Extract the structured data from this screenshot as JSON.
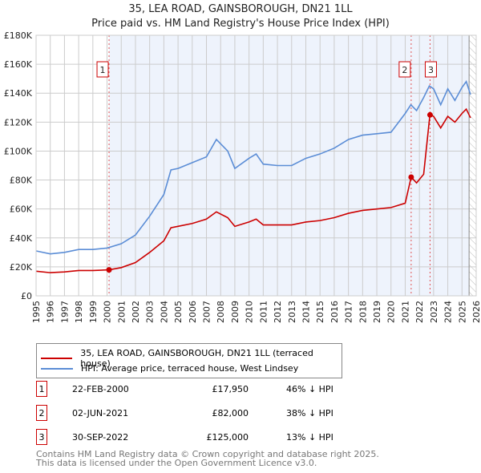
{
  "chart_data": {
    "type": "line",
    "title": "35, LEA ROAD, GAINSBOROUGH, DN21 1LL",
    "subtitle": "Price paid vs. HM Land Registry's House Price Index (HPI)",
    "xlim": [
      1995,
      2026
    ],
    "ylim": [
      0,
      180000
    ],
    "yticks": [
      {
        "v": 0,
        "l": "£0"
      },
      {
        "v": 20000,
        "l": "£20K"
      },
      {
        "v": 40000,
        "l": "£40K"
      },
      {
        "v": 60000,
        "l": "£60K"
      },
      {
        "v": 80000,
        "l": "£80K"
      },
      {
        "v": 100000,
        "l": "£100K"
      },
      {
        "v": 120000,
        "l": "£120K"
      },
      {
        "v": 140000,
        "l": "£140K"
      },
      {
        "v": 160000,
        "l": "£160K"
      },
      {
        "v": 180000,
        "l": "£180K"
      }
    ],
    "xticks": [
      "1995",
      "1996",
      "1997",
      "1998",
      "1999",
      "2000",
      "2001",
      "2002",
      "2003",
      "2004",
      "2005",
      "2006",
      "2007",
      "2008",
      "2009",
      "2010",
      "2011",
      "2012",
      "2013",
      "2014",
      "2015",
      "2016",
      "2017",
      "2018",
      "2019",
      "2020",
      "2021",
      "2022",
      "2023",
      "2024",
      "2025",
      "2026"
    ],
    "series": [
      {
        "name": "35, LEA ROAD, GAINSBOROUGH, DN21 1LL (terraced house)",
        "color": "#cc0000",
        "x": [
          1995,
          1996,
          1997,
          1998,
          1999,
          2000.14,
          2001,
          2002,
          2003,
          2004,
          2004.5,
          2005,
          2006,
          2007,
          2007.7,
          2008.5,
          2009,
          2010,
          2010.5,
          2011,
          2012,
          2013,
          2014,
          2015,
          2016,
          2017,
          2018,
          2019,
          2020,
          2021,
          2021.42,
          2021.8,
          2022.3,
          2022.74,
          2023,
          2023.5,
          2024,
          2024.5,
          2025,
          2025.3,
          2025.6
        ],
        "y": [
          17000,
          16000,
          16500,
          17500,
          17500,
          17950,
          19500,
          23000,
          30000,
          38000,
          47000,
          48000,
          50000,
          53000,
          58000,
          54000,
          48000,
          51000,
          53000,
          49000,
          49000,
          49000,
          51000,
          52000,
          54000,
          57000,
          59000,
          60000,
          61000,
          64000,
          82000,
          78000,
          84000,
          125000,
          124000,
          116000,
          124000,
          120000,
          126000,
          129000,
          123000
        ]
      },
      {
        "name": "HPI: Average price, terraced house, West Lindsey",
        "color": "#5b8dd6",
        "x": [
          1995,
          1996,
          1997,
          1998,
          1999,
          2000,
          2001,
          2002,
          2003,
          2004,
          2004.5,
          2005,
          2006,
          2007,
          2007.7,
          2008.5,
          2009,
          2010,
          2010.5,
          2011,
          2012,
          2013,
          2014,
          2015,
          2016,
          2017,
          2018,
          2019,
          2020,
          2021,
          2021.4,
          2021.8,
          2022.3,
          2022.7,
          2023,
          2023.5,
          2024,
          2024.5,
          2025,
          2025.3,
          2025.6
        ],
        "y": [
          31000,
          29000,
          30000,
          32000,
          32000,
          33000,
          36000,
          42000,
          55000,
          70000,
          87000,
          88000,
          92000,
          96000,
          108000,
          100000,
          88000,
          95000,
          98000,
          91000,
          90000,
          90000,
          95000,
          98000,
          102000,
          108000,
          111000,
          112000,
          113000,
          126000,
          132000,
          128000,
          137000,
          145000,
          143000,
          132000,
          143000,
          135000,
          144000,
          148000,
          139000
        ]
      }
    ],
    "sales": [
      {
        "n": "1",
        "x": 2000.14,
        "y": 17950,
        "date": "22-FEB-2000",
        "price": "£17,950",
        "hpi": "46% ↓ HPI"
      },
      {
        "n": "2",
        "x": 2021.42,
        "y": 82000,
        "date": "02-JUN-2021",
        "price": "£82,000",
        "hpi": "38% ↓ HPI"
      },
      {
        "n": "3",
        "x": 2022.75,
        "y": 125000,
        "date": "30-SEP-2022",
        "price": "£125,000",
        "hpi": "13% ↓ HPI"
      }
    ],
    "legend_placement": "bottom"
  },
  "footer": [
    "Contains HM Land Registry data © Crown copyright and database right 2025.",
    "This data is licensed under the Open Government Licence v3.0."
  ]
}
